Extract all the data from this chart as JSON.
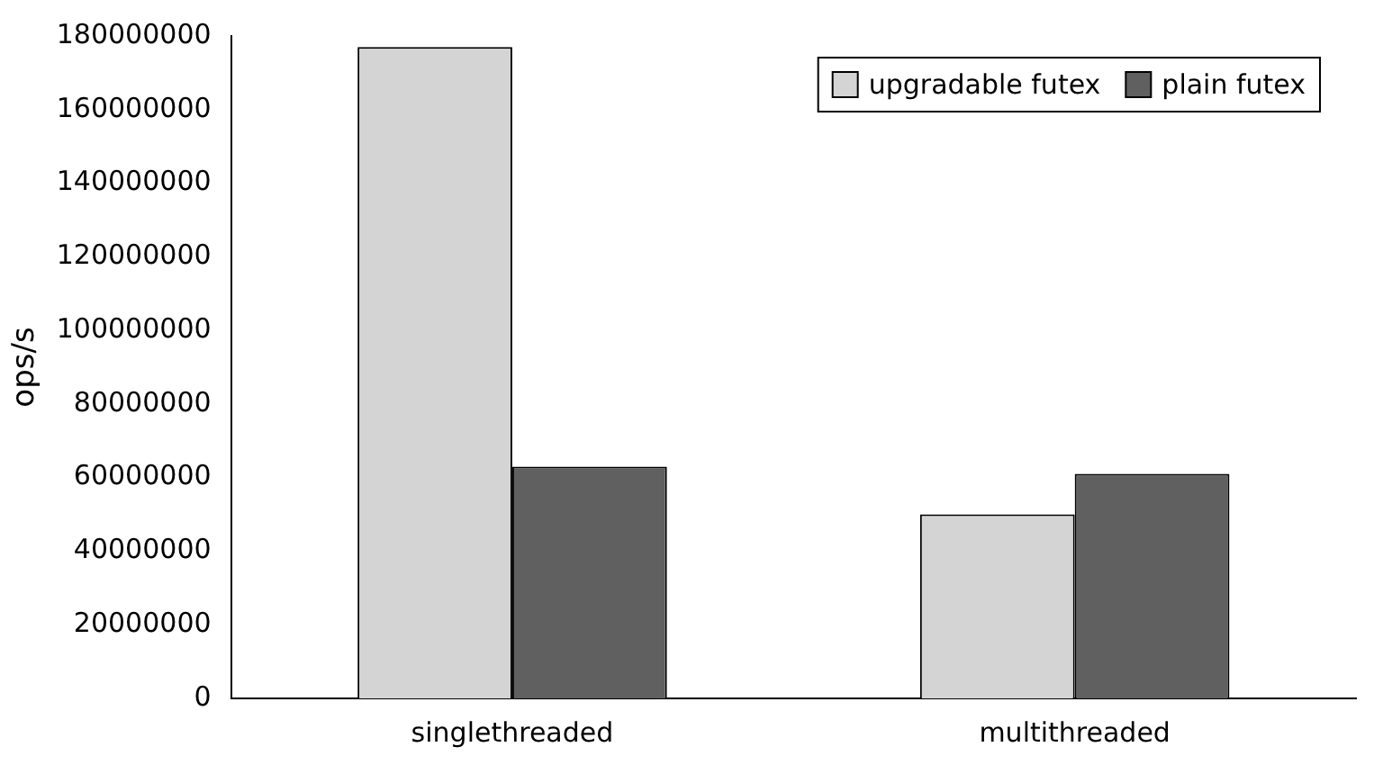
{
  "chart_data": {
    "type": "bar",
    "ylabel": "ops/s",
    "categories": [
      "singlethreaded",
      "multithreaded"
    ],
    "series": [
      {
        "name": "upgradable futex",
        "color": "#d4d4d4",
        "values": [
          177000000,
          50000000
        ]
      },
      {
        "name": "plain futex",
        "color": "#606060",
        "values": [
          63000000,
          61000000
        ]
      }
    ],
    "ylim": [
      0,
      180000000
    ],
    "yticks": [
      0,
      20000000,
      40000000,
      60000000,
      80000000,
      100000000,
      120000000,
      140000000,
      160000000,
      180000000
    ],
    "grid": false,
    "legend": "top right"
  }
}
